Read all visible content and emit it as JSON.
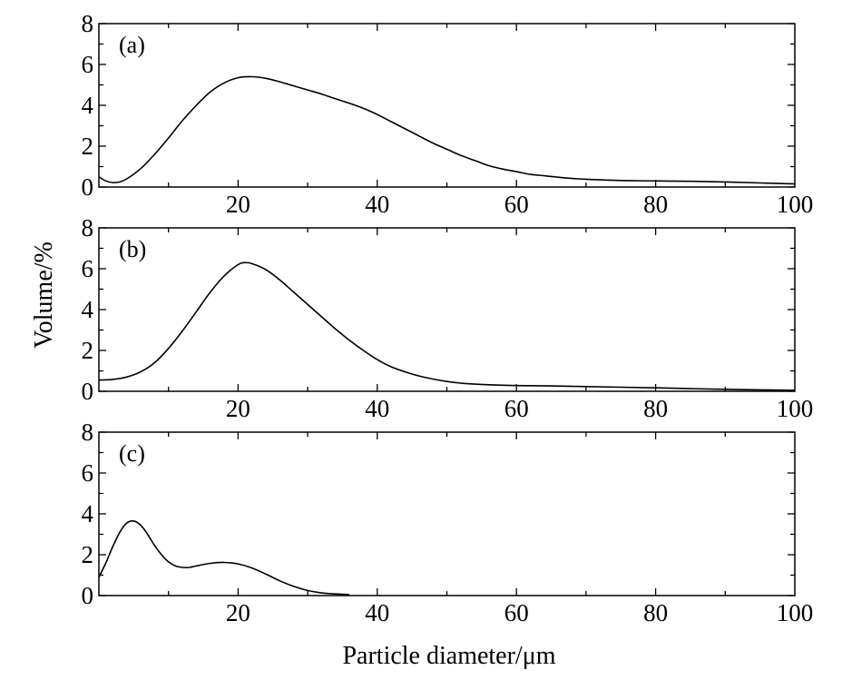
{
  "figure": {
    "xlabel": "Particle diameter/μm",
    "ylabel": "Volume/%"
  },
  "chart_data": [
    {
      "type": "line",
      "panel": "(a)",
      "xlim": [
        0,
        100
      ],
      "ylim": [
        0,
        8
      ],
      "x_ticks": [
        "20",
        "40",
        "60",
        "80",
        "100"
      ],
      "y_ticks": [
        "0",
        "2",
        "4",
        "6",
        "8"
      ],
      "series": [
        {
          "color": "#000000",
          "x": [
            0,
            1,
            2,
            3,
            4,
            6,
            8,
            10,
            12,
            14,
            16,
            18,
            20,
            22,
            24,
            26,
            28,
            30,
            32,
            34,
            36,
            38,
            40,
            42,
            44,
            46,
            48,
            50,
            52,
            54,
            56,
            58,
            60,
            62,
            64,
            66,
            68,
            70,
            75,
            80,
            85,
            90,
            95,
            100
          ],
          "y": [
            0.5,
            0.3,
            0.22,
            0.25,
            0.4,
            0.9,
            1.6,
            2.4,
            3.25,
            4.0,
            4.65,
            5.1,
            5.35,
            5.4,
            5.32,
            5.15,
            4.95,
            4.75,
            4.55,
            4.32,
            4.1,
            3.85,
            3.55,
            3.2,
            2.85,
            2.5,
            2.15,
            1.85,
            1.55,
            1.3,
            1.05,
            0.88,
            0.75,
            0.62,
            0.55,
            0.48,
            0.42,
            0.38,
            0.32,
            0.3,
            0.28,
            0.25,
            0.2,
            0.15
          ]
        }
      ]
    },
    {
      "type": "line",
      "panel": "(b)",
      "xlim": [
        0,
        100
      ],
      "ylim": [
        0,
        8
      ],
      "x_ticks": [
        "20",
        "40",
        "60",
        "80",
        "100"
      ],
      "y_ticks": [
        "0",
        "2",
        "4",
        "6",
        "8"
      ],
      "series": [
        {
          "color": "#000000",
          "x": [
            0,
            2,
            4,
            6,
            8,
            10,
            12,
            14,
            16,
            18,
            20,
            21,
            22,
            24,
            26,
            28,
            30,
            32,
            34,
            36,
            38,
            40,
            42,
            44,
            46,
            48,
            50,
            52,
            54,
            56,
            58,
            60,
            65,
            70,
            75,
            80,
            85,
            90,
            95,
            100
          ],
          "y": [
            0.55,
            0.58,
            0.7,
            0.95,
            1.4,
            2.1,
            2.95,
            3.9,
            4.85,
            5.65,
            6.2,
            6.3,
            6.25,
            5.95,
            5.45,
            4.85,
            4.25,
            3.65,
            3.05,
            2.5,
            2.0,
            1.55,
            1.2,
            0.95,
            0.75,
            0.6,
            0.48,
            0.4,
            0.35,
            0.32,
            0.3,
            0.28,
            0.26,
            0.23,
            0.2,
            0.17,
            0.13,
            0.1,
            0.07,
            0.05
          ]
        }
      ]
    },
    {
      "type": "line",
      "panel": "(c)",
      "xlim": [
        0,
        100
      ],
      "ylim": [
        0,
        8
      ],
      "x_ticks": [
        "20",
        "40",
        "60",
        "80",
        "100"
      ],
      "y_ticks": [
        "0",
        "2",
        "4",
        "6",
        "8"
      ],
      "series": [
        {
          "color": "#000000",
          "x": [
            0,
            1,
            2,
            3,
            4,
            5,
            6,
            7,
            8,
            9,
            10,
            11,
            12,
            13,
            14,
            16,
            18,
            20,
            22,
            24,
            26,
            28,
            30,
            32,
            34,
            36
          ],
          "y": [
            0.9,
            1.6,
            2.4,
            3.1,
            3.55,
            3.65,
            3.45,
            3.0,
            2.45,
            2.0,
            1.65,
            1.45,
            1.38,
            1.38,
            1.45,
            1.58,
            1.62,
            1.55,
            1.35,
            1.05,
            0.72,
            0.45,
            0.25,
            0.13,
            0.08,
            0.05
          ]
        }
      ]
    }
  ]
}
